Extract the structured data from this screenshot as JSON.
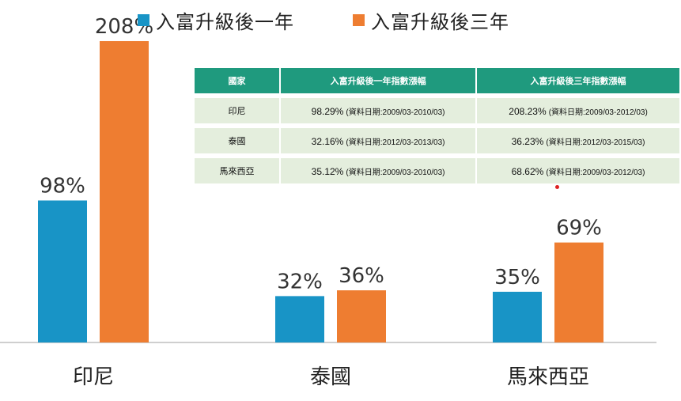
{
  "colors": {
    "series1": "#1894c6",
    "series2": "#ee7d31",
    "table_header": "#1f9a7e",
    "table_cell": "#e4eedd",
    "axis": "#cfcfcf"
  },
  "chart_data": {
    "type": "bar",
    "categories": [
      "印尼",
      "泰國",
      "馬來西亞"
    ],
    "series": [
      {
        "name": "入富升級後一年",
        "values": [
          98,
          32,
          35
        ],
        "labels": [
          "98%",
          "32%",
          "35%"
        ]
      },
      {
        "name": "入富升級後三年",
        "values": [
          208,
          36,
          69
        ],
        "labels": [
          "208%",
          "36%",
          "69%"
        ]
      }
    ],
    "ylim": [
      0,
      220
    ],
    "legend_position": "top"
  },
  "table": {
    "headers": [
      "國家",
      "入富升級後一年指數漲幅",
      "入富升級後三年指數漲幅"
    ],
    "rows": [
      {
        "country": "印尼",
        "one_pct": "98.29%",
        "one_note": "(資料日期:2009/03-2010/03)",
        "three_pct": "208.23%",
        "three_note": "(資料日期:2009/03-2012/03)"
      },
      {
        "country": "泰國",
        "one_pct": "32.16%",
        "one_note": "(資料日期:2012/03-2013/03)",
        "three_pct": "36.23%",
        "three_note": "(資料日期:2012/03-2015/03)"
      },
      {
        "country": "馬來西亞",
        "one_pct": "35.12%",
        "one_note": "(資料日期:2009/03-2010/03)",
        "three_pct": "68.62%",
        "three_note": "(資料日期:2009/03-2012/03)"
      }
    ]
  }
}
